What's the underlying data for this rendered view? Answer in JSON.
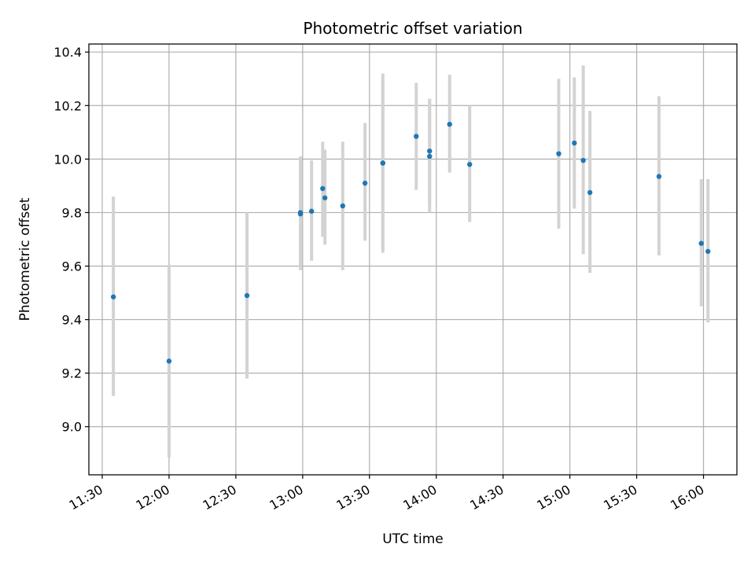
{
  "chart_data": {
    "type": "scatter",
    "title": "Photometric offset variation",
    "xlabel": "UTC time",
    "ylabel": "Photometric offset",
    "x_ticks": [
      "11:30",
      "12:00",
      "12:30",
      "13:00",
      "13:30",
      "14:00",
      "14:30",
      "15:00",
      "15:30",
      "16:00"
    ],
    "y_ticks": [
      "9.0",
      "9.2",
      "9.4",
      "9.6",
      "9.8",
      "10.0",
      "10.2",
      "10.4"
    ],
    "xlim": [
      "11:24",
      "16:15"
    ],
    "ylim": [
      8.82,
      10.43
    ],
    "grid": true,
    "colors": {
      "points": "#1f77b4",
      "errorbars": "#d3d3d3",
      "grid": "#b0b0b0"
    },
    "points": [
      {
        "x": "11:35",
        "y": 9.485,
        "low": 9.115,
        "high": 9.86
      },
      {
        "x": "12:00",
        "y": 9.245,
        "low": 8.885,
        "high": 9.605
      },
      {
        "x": "12:35",
        "y": 9.49,
        "low": 9.18,
        "high": 9.8
      },
      {
        "x": "12:59",
        "y": 9.8,
        "low": 9.585,
        "high": 10.01
      },
      {
        "x": "12:59",
        "y": 9.795,
        "low": 9.59,
        "high": 10.005
      },
      {
        "x": "13:04",
        "y": 9.805,
        "low": 9.62,
        "high": 9.995
      },
      {
        "x": "13:09",
        "y": 9.89,
        "low": 9.71,
        "high": 10.065
      },
      {
        "x": "13:10",
        "y": 9.855,
        "low": 9.68,
        "high": 10.035
      },
      {
        "x": "13:18",
        "y": 9.825,
        "low": 9.585,
        "high": 10.065
      },
      {
        "x": "13:28",
        "y": 9.91,
        "low": 9.695,
        "high": 10.135
      },
      {
        "x": "13:36",
        "y": 9.985,
        "low": 9.66,
        "high": 10.3
      },
      {
        "x": "13:36",
        "y": 9.985,
        "low": 9.65,
        "high": 10.32
      },
      {
        "x": "13:51",
        "y": 10.085,
        "low": 9.885,
        "high": 10.285
      },
      {
        "x": "13:57",
        "y": 10.01,
        "low": 9.8,
        "high": 10.225
      },
      {
        "x": "13:57",
        "y": 10.03,
        "low": 9.835,
        "high": 10.225
      },
      {
        "x": "14:06",
        "y": 10.13,
        "low": 9.95,
        "high": 10.315
      },
      {
        "x": "14:15",
        "y": 9.98,
        "low": 9.765,
        "high": 10.2
      },
      {
        "x": "14:55",
        "y": 10.02,
        "low": 9.74,
        "high": 10.3
      },
      {
        "x": "15:02",
        "y": 10.06,
        "low": 9.815,
        "high": 10.305
      },
      {
        "x": "15:06",
        "y": 9.995,
        "low": 9.645,
        "high": 10.35
      },
      {
        "x": "15:09",
        "y": 9.875,
        "low": 9.575,
        "high": 10.18
      },
      {
        "x": "15:40",
        "y": 9.935,
        "low": 9.64,
        "high": 10.235
      },
      {
        "x": "15:59",
        "y": 9.685,
        "low": 9.45,
        "high": 9.925
      },
      {
        "x": "16:02",
        "y": 9.655,
        "low": 9.39,
        "high": 9.925
      }
    ]
  }
}
